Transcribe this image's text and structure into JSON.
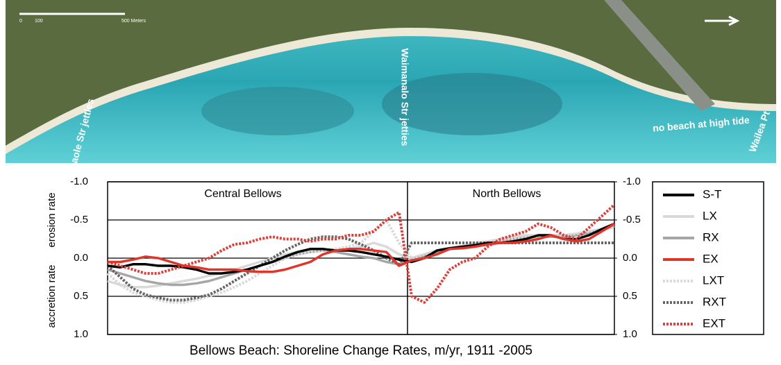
{
  "photo_labels": [
    "0",
    "100",
    "500 Meters",
    "Inaole Str jetties",
    "Waimanalo Str jetties",
    "no beach at high tide",
    "Wailea Pt"
  ],
  "chart_data": {
    "type": "line",
    "title": "Bellows Beach: Shoreline Change Rates, m/yr, 1911 -2005",
    "ylabel_top": "erosion rate",
    "ylabel_bottom": "accretion rate",
    "sections": [
      "Central Bellows",
      "North Bellows"
    ],
    "ylim": [
      1.0,
      -1.0
    ],
    "yticks": [
      {
        "value": -1.0,
        "label": "-1.0"
      },
      {
        "value": -0.5,
        "label": "-0.5"
      },
      {
        "value": 0.0,
        "label": "0.0"
      },
      {
        "value": 0.5,
        "label": "0.5"
      },
      {
        "value": 1.0,
        "label": "1.0"
      }
    ],
    "y2lim": [
      1.0,
      -1.0
    ],
    "y2ticks": [
      {
        "value": -1.0,
        "label": "-1.0"
      },
      {
        "value": -0.5,
        "label": "-0.5"
      },
      {
        "value": 0.0,
        "label": "0.0"
      },
      {
        "value": 0.5,
        "label": "0.5"
      },
      {
        "value": 1.0,
        "label": "1.0"
      }
    ],
    "grid": true,
    "legend": "right",
    "series": [
      {
        "name": "S-T",
        "color": "#000000",
        "style": "solid",
        "values": [
          0.1,
          0.12,
          0.08,
          0.08,
          0.1,
          0.1,
          0.12,
          0.15,
          0.2,
          0.2,
          0.18,
          0.15,
          0.1,
          0.05,
          -0.02,
          -0.08,
          -0.12,
          -0.12,
          -0.1,
          -0.1,
          -0.08,
          -0.05,
          -0.02,
          0.02,
          0.05,
          0.0,
          -0.1,
          -0.13,
          -0.15,
          -0.17,
          -0.2,
          -0.2,
          -0.22,
          -0.25,
          -0.3,
          -0.3,
          -0.25,
          -0.25,
          -0.3,
          -0.38,
          -0.45
        ]
      },
      {
        "name": "LX",
        "color": "#d9d9d9",
        "style": "solid",
        "values": [
          0.3,
          0.35,
          0.38,
          0.38,
          0.36,
          0.33,
          0.3,
          0.27,
          0.23,
          0.2,
          0.15,
          0.1,
          0.05,
          0.0,
          -0.05,
          -0.08,
          -0.1,
          -0.1,
          -0.1,
          -0.12,
          -0.15,
          -0.2,
          -0.15,
          -0.05,
          0.0,
          -0.05,
          -0.1,
          -0.13,
          -0.16,
          -0.2,
          -0.22,
          -0.25,
          -0.28,
          -0.3,
          -0.3,
          -0.3,
          -0.3,
          -0.32,
          -0.35,
          -0.38,
          -0.42
        ]
      },
      {
        "name": "RX",
        "color": "#a6a6a6",
        "style": "solid",
        "values": [
          0.15,
          0.2,
          0.25,
          0.3,
          0.33,
          0.35,
          0.35,
          0.33,
          0.3,
          0.25,
          0.2,
          0.15,
          0.1,
          0.05,
          0.0,
          -0.05,
          -0.08,
          -0.1,
          -0.08,
          -0.05,
          -0.02,
          0.0,
          0.05,
          0.08,
          0.02,
          -0.03,
          -0.08,
          -0.12,
          -0.15,
          -0.18,
          -0.2,
          -0.22,
          -0.25,
          -0.27,
          -0.28,
          -0.28,
          -0.28,
          -0.3,
          -0.33,
          -0.37,
          -0.42
        ]
      },
      {
        "name": "EX",
        "color": "#e0352b",
        "style": "solid",
        "values": [
          0.05,
          0.05,
          0.02,
          -0.02,
          0.0,
          0.05,
          0.1,
          0.12,
          0.15,
          0.15,
          0.15,
          0.17,
          0.18,
          0.18,
          0.15,
          0.1,
          0.05,
          -0.05,
          -0.1,
          -0.12,
          -0.12,
          -0.1,
          -0.08,
          0.1,
          0.03,
          0.0,
          -0.05,
          -0.12,
          -0.13,
          -0.15,
          -0.18,
          -0.2,
          -0.2,
          -0.22,
          -0.25,
          -0.3,
          -0.25,
          -0.22,
          -0.25,
          -0.35,
          -0.45
        ]
      },
      {
        "name": "LXT",
        "color": "#d9d9d9",
        "style": "dotted",
        "values": [
          0.2,
          0.35,
          0.45,
          0.5,
          0.55,
          0.58,
          0.58,
          0.55,
          0.5,
          0.45,
          0.38,
          0.3,
          0.2,
          0.1,
          0.0,
          -0.05,
          -0.08,
          -0.1,
          -0.12,
          -0.15,
          -0.2,
          -0.35,
          -0.5,
          -0.2,
          0.0,
          -0.05,
          -0.1,
          -0.13,
          -0.15,
          -0.18,
          -0.2,
          -0.22,
          -0.25,
          -0.27,
          -0.28,
          -0.3,
          -0.3,
          -0.32,
          -0.35,
          -0.38,
          -0.4
        ]
      },
      {
        "name": "RXT",
        "color": "#666666",
        "style": "dotted",
        "values": [
          0.1,
          0.25,
          0.4,
          0.48,
          0.52,
          0.55,
          0.55,
          0.52,
          0.48,
          0.4,
          0.3,
          0.2,
          0.1,
          0.0,
          -0.1,
          -0.18,
          -0.25,
          -0.28,
          -0.28,
          -0.25,
          -0.18,
          -0.1,
          0.0,
          0.08,
          -0.2,
          -0.2,
          -0.2,
          -0.2,
          -0.2,
          -0.2,
          -0.2,
          -0.2,
          -0.2,
          -0.2,
          -0.2,
          -0.2,
          -0.2,
          -0.2,
          -0.2,
          -0.2,
          -0.2
        ]
      },
      {
        "name": "EXT",
        "color": "#d9413a",
        "style": "dotted",
        "values": [
          0.05,
          0.1,
          0.15,
          0.2,
          0.2,
          0.15,
          0.1,
          0.05,
          0.0,
          -0.1,
          -0.18,
          -0.2,
          -0.25,
          -0.28,
          -0.25,
          -0.25,
          -0.22,
          -0.25,
          -0.25,
          -0.3,
          -0.3,
          -0.35,
          -0.5,
          -0.6,
          0.5,
          0.58,
          0.4,
          0.15,
          0.05,
          0.0,
          -0.15,
          -0.25,
          -0.3,
          -0.35,
          -0.45,
          -0.4,
          -0.3,
          -0.25,
          -0.4,
          -0.55,
          -0.7
        ]
      }
    ]
  }
}
